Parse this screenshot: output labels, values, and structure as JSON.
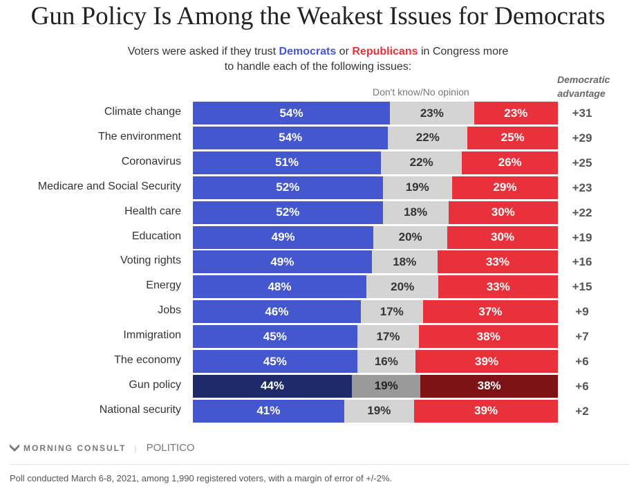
{
  "chart_data": {
    "type": "bar",
    "stacked": true,
    "orientation": "horizontal",
    "title": "Gun Policy Is Among the Weakest Issues for Democrats",
    "subtitle": {
      "pre": "Voters were asked if they trust ",
      "dem": "Democrats",
      "mid": " or ",
      "rep": "Republicans",
      "post": " in Congress more to handle each of the following issues:"
    },
    "middle_label": "Don't know/No opinion",
    "advantage_header": [
      "Democratic",
      "advantage"
    ],
    "categories": [
      "Climate change",
      "The environment",
      "Coronavirus",
      "Medicare and Social Security",
      "Health care",
      "Education",
      "Voting rights",
      "Energy",
      "Jobs",
      "Immigration",
      "The economy",
      "Gun policy",
      "National security"
    ],
    "series": [
      {
        "name": "Democrats",
        "values": [
          54,
          54,
          51,
          52,
          52,
          49,
          49,
          48,
          46,
          45,
          45,
          44,
          41
        ]
      },
      {
        "name": "Don't know/No opinion",
        "values": [
          23,
          22,
          22,
          19,
          18,
          20,
          18,
          20,
          17,
          17,
          16,
          19,
          19
        ]
      },
      {
        "name": "Republicans",
        "values": [
          23,
          25,
          26,
          29,
          30,
          30,
          33,
          33,
          37,
          38,
          39,
          38,
          39
        ]
      }
    ],
    "advantage": [
      "+31",
      "+29",
      "+25",
      "+23",
      "+22",
      "+19",
      "+16",
      "+15",
      "+9",
      "+7",
      "+6",
      "+6",
      "+2"
    ],
    "highlight": "Gun policy",
    "colors": {
      "dem": "#4457cf",
      "dk": "#d4d4d4",
      "rep": "#e8313a",
      "dem_hl": "#1f2a6b",
      "dk_hl": "#9a9a9a",
      "rep_hl": "#7d1316"
    }
  },
  "footer": {
    "brand": "MORNING CONSULT",
    "partner": "POLITICO",
    "note": "Poll conducted March 6-8, 2021, among 1,990 registered voters, with a margin of error of +/-2%."
  }
}
